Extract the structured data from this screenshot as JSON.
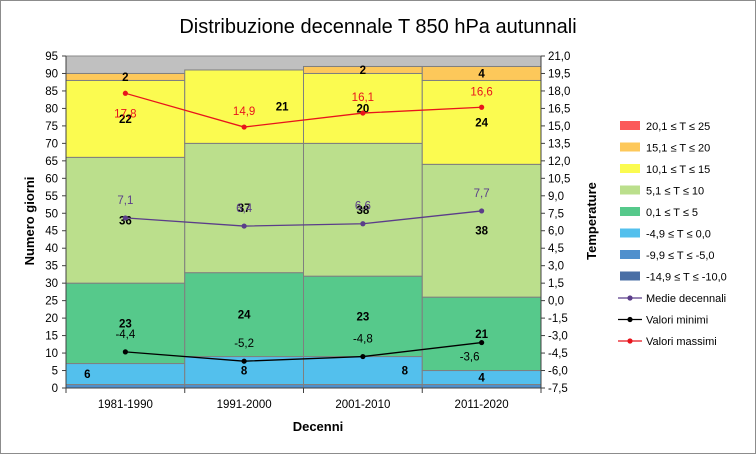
{
  "chart_data": {
    "type": "bar",
    "title": "Distribuzione decennale T 850 hPa autunnali",
    "xlabel": "Decenni",
    "ylabel": "Numero giorni",
    "y2label": "Temperature",
    "categories": [
      "1981-1990",
      "1991-2000",
      "2001-2010",
      "2011-2020"
    ],
    "ylim": [
      0,
      95
    ],
    "y2lim": [
      -7.5,
      21.0
    ],
    "yticks": [
      "0",
      "5",
      "10",
      "15",
      "20",
      "25",
      "30",
      "35",
      "40",
      "45",
      "50",
      "55",
      "60",
      "65",
      "70",
      "75",
      "80",
      "85",
      "90",
      "95"
    ],
    "y2ticks": [
      "-7,5",
      "-6,0",
      "-4,5",
      "-3,0",
      "-1,5",
      "0,0",
      "1,5",
      "3,0",
      "4,5",
      "6,0",
      "7,5",
      "9,0",
      "10,5",
      "12,0",
      "13,5",
      "15,0",
      "16,5",
      "18,0",
      "19,5",
      "21,0"
    ],
    "grid": true,
    "legend_position": "right",
    "series": [
      {
        "name": "-14,9 ≤ T ≤ -10,0",
        "color": "#4a6fa5",
        "values": [
          0,
          0,
          0,
          0
        ],
        "labels": [
          "",
          "",
          "",
          ""
        ]
      },
      {
        "name": "-9,9 ≤ T ≤ -5,0",
        "color": "#4f90cd",
        "values": [
          1,
          1,
          1,
          1
        ],
        "labels": [
          "",
          "",
          "",
          ""
        ]
      },
      {
        "name": "-4,9 ≤ T ≤ 0,0",
        "color": "#53c0ed",
        "values": [
          6,
          8,
          8,
          4
        ],
        "labels": [
          "6",
          "8",
          "8",
          "4"
        ]
      },
      {
        "name": "0,1 ≤ T ≤ 5",
        "color": "#56c98b",
        "values": [
          23,
          24,
          23,
          21
        ],
        "labels": [
          "23",
          "24",
          "23",
          "21"
        ]
      },
      {
        "name": "5,1 ≤ T ≤ 10",
        "color": "#bbdf8c",
        "values": [
          36,
          37,
          38,
          38
        ],
        "labels": [
          "36",
          "37",
          "38",
          "38"
        ]
      },
      {
        "name": "10,1 ≤ T ≤ 15",
        "color": "#fbfb50",
        "values": [
          22,
          21,
          20,
          24
        ],
        "labels": [
          "22",
          "21",
          "20",
          "24"
        ]
      },
      {
        "name": "15,1 ≤ T ≤ 20",
        "color": "#fdc85a",
        "values": [
          2,
          0,
          2,
          4
        ],
        "labels": [
          "2",
          "0",
          "2",
          "4"
        ]
      },
      {
        "name": "20,1 ≤ T ≤ 25",
        "color": "#fb5a5a",
        "values": [
          0,
          0,
          0,
          0
        ],
        "labels": [
          "",
          "",
          "",
          ""
        ]
      }
    ],
    "lines": [
      {
        "name": "Medie decennali",
        "color": "#5b3d8a",
        "axis": "right",
        "values": [
          7.1,
          6.4,
          6.6,
          7.7
        ],
        "labels": [
          "7,1",
          "6,4",
          "6,6",
          "7,7"
        ]
      },
      {
        "name": "Valori minimi",
        "color": "#000000",
        "axis": "right",
        "values": [
          -4.4,
          -5.2,
          -4.8,
          -3.6
        ],
        "labels": [
          "-4,4",
          "-5,2",
          "-4,8",
          "-3,6"
        ]
      },
      {
        "name": "Valori massimi",
        "color": "#e8141c",
        "axis": "right",
        "values": [
          17.8,
          14.9,
          16.1,
          16.6
        ],
        "labels": [
          "17,8",
          "14,9",
          "16,1",
          "16,6"
        ]
      }
    ],
    "legend": [
      {
        "name": "20,1 ≤ T ≤ 25",
        "color": "#fb5a5a",
        "kind": "box"
      },
      {
        "name": "15,1 ≤ T ≤ 20",
        "color": "#fdc85a",
        "kind": "box"
      },
      {
        "name": "10,1 ≤ T ≤ 15",
        "color": "#fbfb50",
        "kind": "box"
      },
      {
        "name": "5,1 ≤ T ≤ 10",
        "color": "#bbdf8c",
        "kind": "box"
      },
      {
        "name": "0,1 ≤ T ≤ 5",
        "color": "#56c98b",
        "kind": "box"
      },
      {
        "name": "-4,9 ≤ T ≤ 0,0",
        "color": "#53c0ed",
        "kind": "box"
      },
      {
        "name": "-9,9 ≤ T ≤ -5,0",
        "color": "#4f90cd",
        "kind": "box"
      },
      {
        "name": "-14,9 ≤ T ≤ -10,0",
        "color": "#4a6fa5",
        "kind": "box"
      },
      {
        "name": "Medie decennali",
        "color": "#5b3d8a",
        "kind": "line"
      },
      {
        "name": "Valori minimi",
        "color": "#000000",
        "kind": "line"
      },
      {
        "name": "Valori massimi",
        "color": "#e8141c",
        "kind": "line"
      }
    ]
  }
}
